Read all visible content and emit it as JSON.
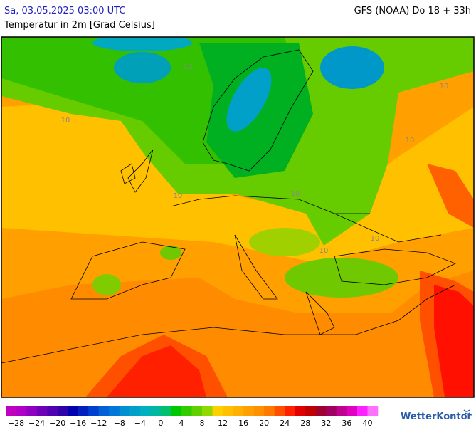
{
  "header": {
    "title": "Sa, 03.05.2025 03:00 UTC",
    "model": "GFS (NOAA) Do 18 + 33h",
    "subtitle": "Temperatur in 2m [Grad Celsius]"
  },
  "map": {
    "contour_labels": [
      "10",
      "10",
      "10",
      "10",
      "10",
      "10",
      "10",
      "10"
    ]
  },
  "colorbar": {
    "labels": [
      "−28",
      "−24",
      "−20",
      "−16",
      "−12",
      "−8",
      "−4",
      "0",
      "4",
      "8",
      "12",
      "16",
      "20",
      "24",
      "28",
      "32",
      "36",
      "40"
    ]
  },
  "brand": "WetterKontor"
}
